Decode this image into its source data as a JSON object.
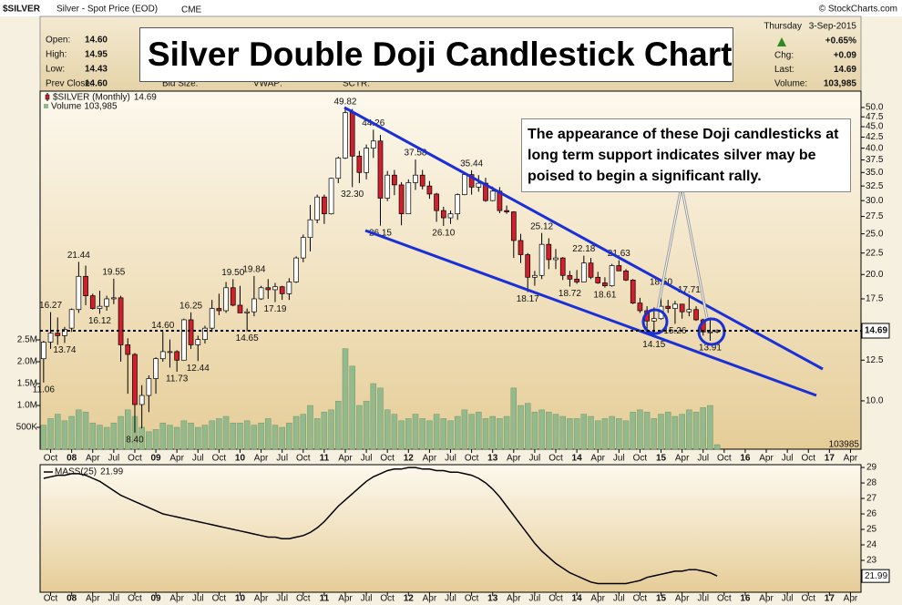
{
  "chart_data": {
    "type": "candlestick",
    "symbol": "$SILVER",
    "description": "Silver - Spot Price (EOD)",
    "exchange": "CME",
    "credit": "© StockCharts.com",
    "title": "Silver Double Doji Candlestick Chart",
    "quote_left": [
      {
        "label": "Open:",
        "value": "14.60"
      },
      {
        "label": "High:",
        "value": "14.95"
      },
      {
        "label": "Low:",
        "value": "14.43"
      },
      {
        "label": "Prev Close:",
        "value": "14.60"
      }
    ],
    "quote_fields": [
      "Bid Size:",
      "VWAP:",
      "SCTR:"
    ],
    "day": "Thursday",
    "date": "3-Sep-2015",
    "change_pct": "+0.65%",
    "quote_right": [
      {
        "label": "Chg:",
        "value": "+0.09"
      },
      {
        "label": "Last:",
        "value": "14.69"
      },
      {
        "label": "Volume:",
        "value": "103,985"
      }
    ],
    "annotation": "The appearance of these Doji candlesticks at long term support indicates silver may be poised to begin a significant rally.",
    "series_name": "$SILVER (Monthly)",
    "up_color": "#ffffff",
    "down_color": "#d0202e",
    "x": [
      "2007-09",
      "2007-10",
      "2007-11",
      "2007-12",
      "2008-01",
      "2008-02",
      "2008-03",
      "2008-04",
      "2008-05",
      "2008-06",
      "2008-07",
      "2008-08",
      "2008-09",
      "2008-10",
      "2008-11",
      "2008-12",
      "2009-01",
      "2009-02",
      "2009-03",
      "2009-04",
      "2009-05",
      "2009-06",
      "2009-07",
      "2009-08",
      "2009-09",
      "2009-10",
      "2009-11",
      "2009-12",
      "2010-01",
      "2010-02",
      "2010-03",
      "2010-04",
      "2010-05",
      "2010-06",
      "2010-07",
      "2010-08",
      "2010-09",
      "2010-10",
      "2010-11",
      "2010-12",
      "2011-01",
      "2011-02",
      "2011-03",
      "2011-04",
      "2011-05",
      "2011-06",
      "2011-07",
      "2011-08",
      "2011-09",
      "2011-10",
      "2011-11",
      "2011-12",
      "2012-01",
      "2012-02",
      "2012-03",
      "2012-04",
      "2012-05",
      "2012-06",
      "2012-07",
      "2012-08",
      "2012-09",
      "2012-10",
      "2012-11",
      "2012-12",
      "2013-01",
      "2013-02",
      "2013-03",
      "2013-04",
      "2013-05",
      "2013-06",
      "2013-07",
      "2013-08",
      "2013-09",
      "2013-10",
      "2013-11",
      "2013-12",
      "2014-01",
      "2014-02",
      "2014-03",
      "2014-04",
      "2014-05",
      "2014-06",
      "2014-07",
      "2014-08",
      "2014-09",
      "2014-10",
      "2014-11",
      "2014-12",
      "2015-01",
      "2015-02",
      "2015-03",
      "2015-04",
      "2015-05",
      "2015-06",
      "2015-07",
      "2015-08",
      "2015-09"
    ],
    "open": [
      12.6,
      13.8,
      14.5,
      14.3,
      14.9,
      16.5,
      19.8,
      17.8,
      16.6,
      16.8,
      17.5,
      17.6,
      13.6,
      12.9,
      9.8,
      10.3,
      11.3,
      12.6,
      13.1,
      13.1,
      12.5,
      15.6,
      13.6,
      14.0,
      14.9,
      16.6,
      16.4,
      18.6,
      16.9,
      16.2,
      16.3,
      17.5,
      18.6,
      18.4,
      18.7,
      18.0,
      19.2,
      21.9,
      24.5,
      27.0,
      30.6,
      27.9,
      33.9,
      37.9,
      48.6,
      38.3,
      35.0,
      40.0,
      41.6,
      30.4,
      34.5,
      32.7,
      27.9,
      33.1,
      34.5,
      32.5,
      31.1,
      28.4,
      27.3,
      27.9,
      31.0,
      34.6,
      32.3,
      33.0,
      30.0,
      31.6,
      28.4,
      28.2,
      24.1,
      22.3,
      19.7,
      19.9,
      23.6,
      21.7,
      21.9,
      19.9,
      19.5,
      19.2,
      21.3,
      19.7,
      19.1,
      18.8,
      21.0,
      20.4,
      19.4,
      17.1,
      16.4,
      15.5,
      15.7,
      16.8,
      16.6,
      17.0,
      16.3,
      16.5,
      15.6,
      14.6,
      14.6
    ],
    "high": [
      13.9,
      16.27,
      15.8,
      15.0,
      16.6,
      21.44,
      21.0,
      18.0,
      18.3,
      17.8,
      19.55,
      17.8,
      14.1,
      13.0,
      10.9,
      11.5,
      12.7,
      14.6,
      14.0,
      13.2,
      15.7,
      16.25,
      14.3,
      15.1,
      17.4,
      18.0,
      19.2,
      19.5,
      18.8,
      16.6,
      19.84,
      18.8,
      19.5,
      19.1,
      18.8,
      19.6,
      22.1,
      24.9,
      29.3,
      31.0,
      31.0,
      34.0,
      38.2,
      49.82,
      49.6,
      39.4,
      40.8,
      44.26,
      43.0,
      35.3,
      35.5,
      33.2,
      33.7,
      37.58,
      35.5,
      33.4,
      31.3,
      29.0,
      28.4,
      31.2,
      34.9,
      35.44,
      34.5,
      34.0,
      32.4,
      32.3,
      29.2,
      28.3,
      25.0,
      22.5,
      20.4,
      25.12,
      24.4,
      23.0,
      22.0,
      20.4,
      20.5,
      22.18,
      21.9,
      20.3,
      19.7,
      21.2,
      21.63,
      20.6,
      19.5,
      17.6,
      16.8,
      16.7,
      18.5,
      17.4,
      17.3,
      17.0,
      17.71,
      16.8,
      15.7,
      15.8,
      14.8
    ],
    "low": [
      11.06,
      13.3,
      13.6,
      13.74,
      14.6,
      16.2,
      16.9,
      16.5,
      16.12,
      16.4,
      17.0,
      12.4,
      10.4,
      8.4,
      8.6,
      9.4,
      10.4,
      12.4,
      12.0,
      11.73,
      12.5,
      13.3,
      12.44,
      13.7,
      14.6,
      16.0,
      16.2,
      16.8,
      16.2,
      14.65,
      15.9,
      17.4,
      17.5,
      17.19,
      17.4,
      17.4,
      19.1,
      21.4,
      22.7,
      26.5,
      26.4,
      27.8,
      33.0,
      37.7,
      32.3,
      33.0,
      33.7,
      37.9,
      26.15,
      29.9,
      30.9,
      26.2,
      27.9,
      31.8,
      31.9,
      30.3,
      26.7,
      26.1,
      26.4,
      27.0,
      30.9,
      31.0,
      31.5,
      29.8,
      29.9,
      28.0,
      27.9,
      21.9,
      21.3,
      18.17,
      18.8,
      19.5,
      20.6,
      20.6,
      19.4,
      18.72,
      19.0,
      19.2,
      19.5,
      19.0,
      18.61,
      18.7,
      20.4,
      19.3,
      17.0,
      16.2,
      14.4,
      14.15,
      15.6,
      16.2,
      15.26,
      15.7,
      15.9,
      15.5,
      14.3,
      13.91,
      14.5
    ],
    "close": [
      13.8,
      14.5,
      14.3,
      14.8,
      16.5,
      19.8,
      17.8,
      16.6,
      16.8,
      17.5,
      17.6,
      13.6,
      12.9,
      9.8,
      10.3,
      11.3,
      12.6,
      13.1,
      13.1,
      12.5,
      15.6,
      13.6,
      14.0,
      14.9,
      16.6,
      16.4,
      18.6,
      16.9,
      16.2,
      16.3,
      17.5,
      18.6,
      18.4,
      18.7,
      18.0,
      19.2,
      21.9,
      24.5,
      27.0,
      30.6,
      27.9,
      33.9,
      37.9,
      48.6,
      38.3,
      35.0,
      40.0,
      41.6,
      30.4,
      34.5,
      32.7,
      27.9,
      33.1,
      34.5,
      32.5,
      31.1,
      28.4,
      27.3,
      27.9,
      31.0,
      34.6,
      32.3,
      33.0,
      30.0,
      31.6,
      28.4,
      28.2,
      24.1,
      22.3,
      19.7,
      19.9,
      23.6,
      21.7,
      21.9,
      19.9,
      19.5,
      19.2,
      21.3,
      19.7,
      19.1,
      18.8,
      21.0,
      20.4,
      19.4,
      17.1,
      16.4,
      15.5,
      15.7,
      16.8,
      16.6,
      17.0,
      16.3,
      16.5,
      15.6,
      14.6,
      14.6,
      14.69
    ],
    "high_labels": [
      null,
      "16.27",
      null,
      null,
      null,
      "21.44",
      null,
      null,
      null,
      null,
      "19.55",
      null,
      null,
      null,
      null,
      null,
      null,
      "14.60",
      null,
      null,
      null,
      "16.25",
      null,
      null,
      null,
      null,
      null,
      "19.50",
      null,
      null,
      "19.84",
      null,
      null,
      null,
      null,
      null,
      null,
      null,
      null,
      null,
      null,
      null,
      null,
      "49.82",
      null,
      null,
      null,
      "44.26",
      null,
      null,
      null,
      null,
      null,
      "37.58",
      null,
      null,
      null,
      null,
      null,
      null,
      null,
      "35.44",
      null,
      null,
      null,
      null,
      null,
      null,
      null,
      null,
      null,
      "25.12",
      null,
      null,
      null,
      null,
      null,
      "22.18",
      null,
      null,
      null,
      null,
      "21.63",
      null,
      null,
      null,
      null,
      null,
      "18.50",
      null,
      null,
      null,
      "17.71",
      null,
      null,
      null,
      null
    ],
    "low_labels": [
      "11.06",
      null,
      null,
      "13.74",
      null,
      null,
      null,
      null,
      "16.12",
      null,
      null,
      null,
      null,
      "8.40",
      null,
      null,
      null,
      null,
      null,
      "11.73",
      null,
      null,
      "12.44",
      null,
      null,
      null,
      null,
      null,
      null,
      "14.65",
      null,
      null,
      null,
      "17.19",
      null,
      null,
      null,
      null,
      null,
      null,
      null,
      null,
      null,
      null,
      "32.30",
      null,
      null,
      null,
      "26.15",
      null,
      null,
      null,
      null,
      null,
      null,
      null,
      null,
      "26.10",
      null,
      null,
      null,
      null,
      null,
      null,
      null,
      null,
      null,
      null,
      null,
      "18.17",
      null,
      null,
      null,
      null,
      null,
      "18.72",
      null,
      null,
      null,
      null,
      "18.61",
      null,
      null,
      null,
      null,
      null,
      null,
      "14.15",
      null,
      null,
      "15.26",
      null,
      null,
      null,
      null,
      "13.91",
      null
    ],
    "xlim": [
      "2007-09",
      "2017-05"
    ],
    "xticks": [
      {
        "value": "2007-10",
        "label": "Oct"
      },
      {
        "value": "2008-01",
        "label": "08"
      },
      {
        "value": "2008-04",
        "label": "Apr"
      },
      {
        "value": "2008-07",
        "label": "Jul"
      },
      {
        "value": "2008-10",
        "label": "Oct"
      },
      {
        "value": "2009-01",
        "label": "09"
      },
      {
        "value": "2009-04",
        "label": "Apr"
      },
      {
        "value": "2009-07",
        "label": "Jul"
      },
      {
        "value": "2009-10",
        "label": "Oct"
      },
      {
        "value": "2010-01",
        "label": "10"
      },
      {
        "value": "2010-04",
        "label": "Apr"
      },
      {
        "value": "2010-07",
        "label": "Jul"
      },
      {
        "value": "2010-10",
        "label": "Oct"
      },
      {
        "value": "2011-01",
        "label": "11"
      },
      {
        "value": "2011-04",
        "label": "Apr"
      },
      {
        "value": "2011-07",
        "label": "Jul"
      },
      {
        "value": "2011-10",
        "label": "Oct"
      },
      {
        "value": "2012-01",
        "label": "12"
      },
      {
        "value": "2012-04",
        "label": "Apr"
      },
      {
        "value": "2012-07",
        "label": "Jul"
      },
      {
        "value": "2012-10",
        "label": "Oct"
      },
      {
        "value": "2013-01",
        "label": "13"
      },
      {
        "value": "2013-04",
        "label": "Apr"
      },
      {
        "value": "2013-07",
        "label": "Jul"
      },
      {
        "value": "2013-10",
        "label": "Oct"
      },
      {
        "value": "2014-01",
        "label": "14"
      },
      {
        "value": "2014-04",
        "label": "Apr"
      },
      {
        "value": "2014-07",
        "label": "Jul"
      },
      {
        "value": "2014-10",
        "label": "Oct"
      },
      {
        "value": "2015-01",
        "label": "15"
      },
      {
        "value": "2015-04",
        "label": "Apr"
      },
      {
        "value": "2015-07",
        "label": "Jul"
      },
      {
        "value": "2015-10",
        "label": "Oct"
      },
      {
        "value": "2016-01",
        "label": "16"
      },
      {
        "value": "2016-04",
        "label": "Apr"
      },
      {
        "value": "2016-07",
        "label": "Jul"
      },
      {
        "value": "2016-10",
        "label": "Oct"
      },
      {
        "value": "2017-01",
        "label": "17"
      },
      {
        "value": "2017-04",
        "label": "Apr"
      }
    ],
    "ylim": [
      7.67,
      54.7
    ],
    "log_scale": true,
    "yticks": [
      {
        "value": 10,
        "label": "10.0"
      },
      {
        "value": 12.5,
        "label": "12.5"
      },
      {
        "value": 15,
        "label": "15.0"
      },
      {
        "value": 17.5,
        "label": "17.5"
      },
      {
        "value": 20,
        "label": "20.0"
      },
      {
        "value": 22.5,
        "label": "22.5"
      },
      {
        "value": 25,
        "label": "25.0"
      },
      {
        "value": 27.5,
        "label": "27.5"
      },
      {
        "value": 30,
        "label": "30.0"
      },
      {
        "value": 32.5,
        "label": "32.5"
      },
      {
        "value": 35,
        "label": "35.0"
      },
      {
        "value": 37.5,
        "label": "37.5"
      },
      {
        "value": 40,
        "label": "40.0"
      },
      {
        "value": 42.5,
        "label": "42.5"
      },
      {
        "value": 45,
        "label": "45.0"
      },
      {
        "value": 47.5,
        "label": "47.5"
      },
      {
        "value": 50,
        "label": "50.0"
      }
    ],
    "volume": {
      "name": "Volume",
      "value_label": "103,985",
      "color": "#93b98c",
      "values": [
        550000,
        700000,
        800000,
        650000,
        750000,
        900000,
        850000,
        600000,
        550000,
        500000,
        600000,
        750000,
        900000,
        750000,
        500000,
        400000,
        450000,
        600000,
        550000,
        500000,
        650000,
        600000,
        500000,
        550000,
        650000,
        700000,
        750000,
        600000,
        600000,
        650000,
        550000,
        600000,
        700000,
        550000,
        500000,
        600000,
        750000,
        800000,
        1000000,
        700000,
        850000,
        900000,
        1100000,
        2300000,
        1900000,
        1000000,
        1100000,
        1500000,
        1400000,
        900000,
        800000,
        650000,
        700000,
        800000,
        700000,
        650000,
        800000,
        700000,
        650000,
        750000,
        900000,
        800000,
        850000,
        700000,
        750000,
        700000,
        750000,
        1400000,
        1000000,
        1050000,
        850000,
        900000,
        850000,
        800000,
        750000,
        700000,
        700000,
        800000,
        750000,
        650000,
        700000,
        750000,
        700000,
        650000,
        850000,
        900000,
        850000,
        700000,
        800000,
        850000,
        750000,
        800000,
        900000,
        850000,
        950000,
        1000000,
        103985
      ],
      "ylim": [
        0,
        8190000
      ],
      "yticks": [
        {
          "value": 500000,
          "label": "500K"
        },
        {
          "value": 1000000,
          "label": "1.0M"
        },
        {
          "value": 1500000,
          "label": "1.5M"
        },
        {
          "value": 2000000,
          "label": "2.0M"
        },
        {
          "value": 2500000,
          "label": "2.5M"
        }
      ]
    },
    "mass_index": {
      "name": "MASS(25)",
      "color": "#000000",
      "values": [
        28.3,
        28.4,
        28.5,
        28.5,
        28.6,
        28.6,
        28.5,
        28.3,
        28.1,
        27.8,
        27.5,
        27.2,
        27.0,
        26.8,
        26.6,
        26.4,
        26.2,
        26.0,
        25.9,
        25.8,
        25.7,
        25.6,
        25.5,
        25.4,
        25.3,
        25.2,
        25.1,
        25.0,
        24.9,
        24.8,
        24.7,
        24.6,
        24.5,
        24.5,
        24.4,
        24.4,
        24.5,
        24.6,
        24.8,
        25.1,
        25.5,
        26.0,
        26.5,
        26.9,
        27.3,
        27.7,
        28.1,
        28.4,
        28.6,
        28.8,
        28.9,
        28.9,
        29.0,
        29.0,
        28.9,
        28.9,
        28.8,
        28.8,
        28.7,
        28.7,
        28.6,
        28.5,
        28.3,
        28.0,
        27.6,
        27.1,
        26.5,
        25.9,
        25.3,
        24.7,
        24.1,
        23.6,
        23.2,
        22.8,
        22.5,
        22.2,
        22.0,
        21.8,
        21.6,
        21.5,
        21.5,
        21.5,
        21.5,
        21.5,
        21.6,
        21.7,
        21.9,
        22.0,
        22.1,
        22.2,
        22.3,
        22.3,
        22.4,
        22.4,
        22.3,
        22.2,
        21.99
      ],
      "ylim": [
        20.94,
        29.18
      ],
      "yticks": [
        22,
        23,
        24,
        25,
        26,
        27,
        28,
        29
      ]
    }
  }
}
